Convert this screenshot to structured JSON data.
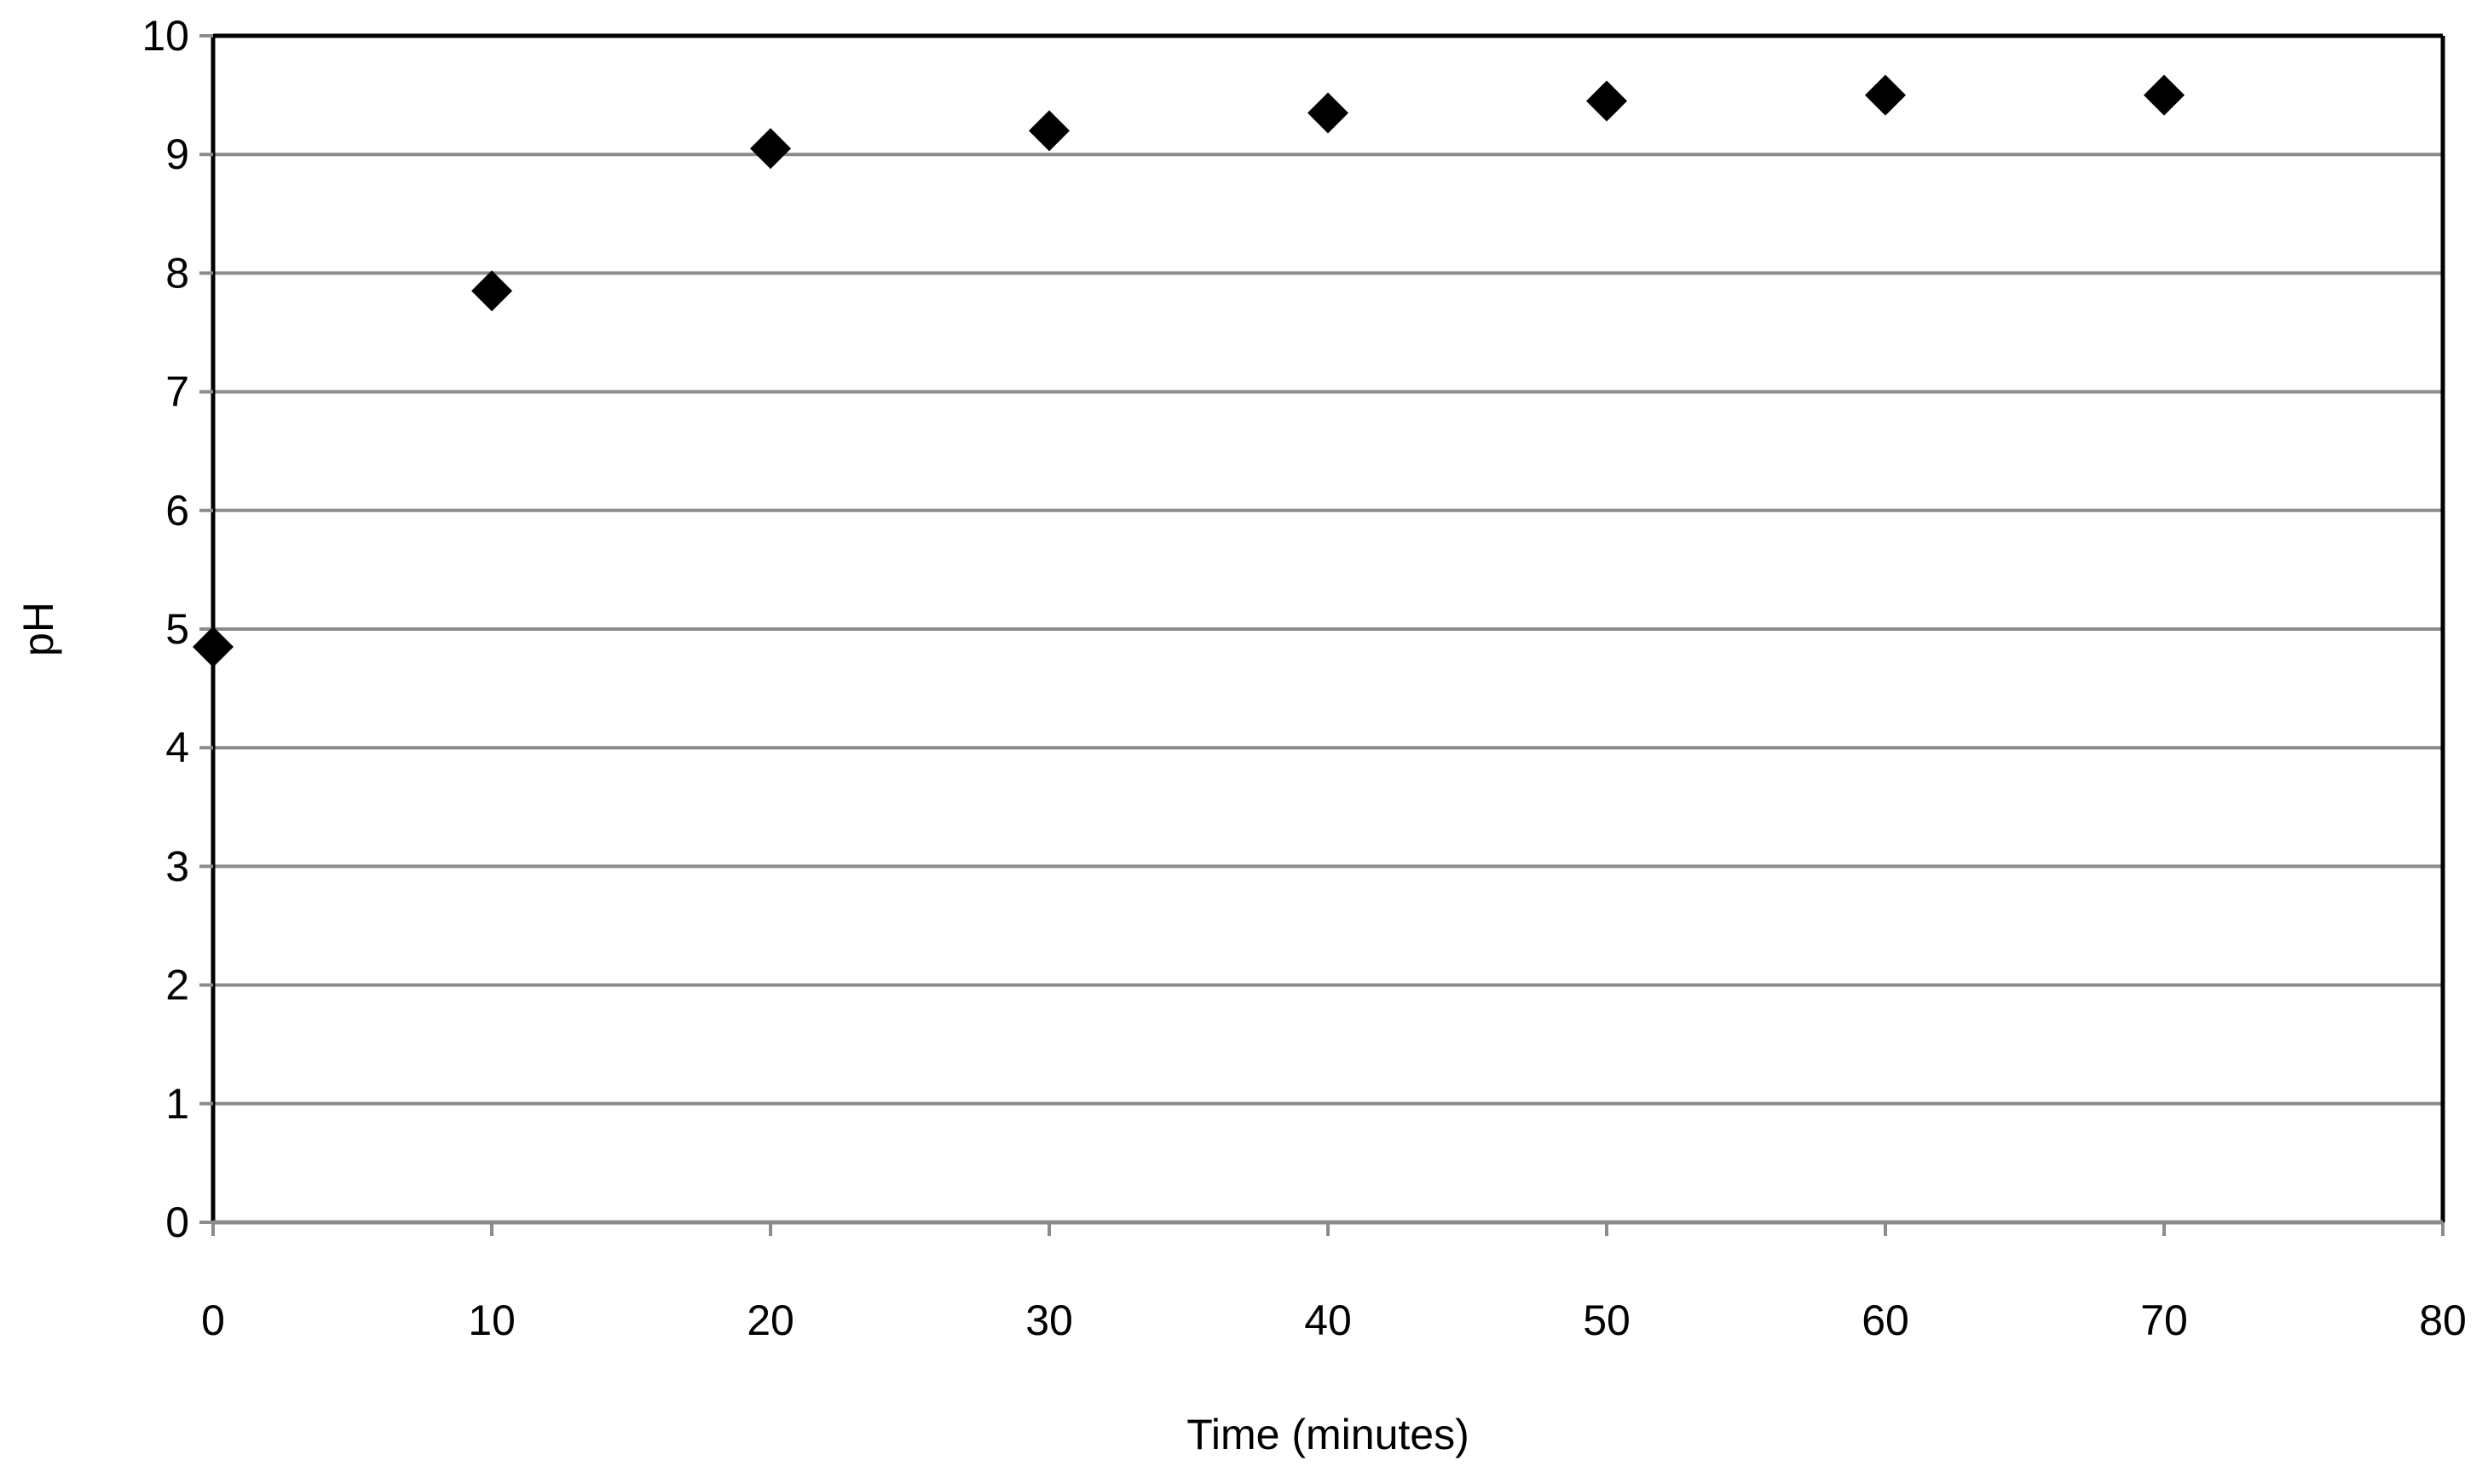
{
  "chart_data": {
    "type": "scatter",
    "title": "",
    "xlabel": "Time (minutes)",
    "ylabel": "pH",
    "xlim": [
      0,
      80
    ],
    "ylim": [
      0,
      10
    ],
    "x_ticks": [
      "0",
      "10",
      "20",
      "30",
      "40",
      "50",
      "60",
      "70",
      "80"
    ],
    "y_ticks": [
      "0",
      "1",
      "2",
      "3",
      "4",
      "5",
      "6",
      "7",
      "8",
      "9",
      "10"
    ],
    "grid": "horizontal",
    "legend": "none",
    "marker": "diamond",
    "colors": {
      "marker": "#000000",
      "gridline": "#8c8c8c",
      "axis": "#000000"
    },
    "series": [
      {
        "x": [
          0,
          10,
          20,
          30,
          40,
          50,
          60,
          70
        ],
        "y": [
          4.85,
          7.85,
          9.05,
          9.2,
          9.35,
          9.45,
          9.5,
          9.5
        ]
      }
    ]
  }
}
